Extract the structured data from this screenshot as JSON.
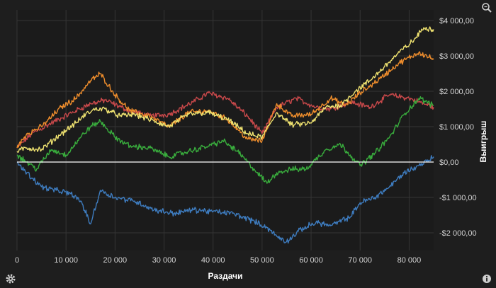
{
  "chart_data": {
    "type": "line",
    "xlabel": "Раздачи",
    "ylabel": "Выигрыш",
    "xlim": [
      0,
      85000
    ],
    "ylim": [
      -2500,
      4300
    ],
    "x_ticks": [
      {
        "value": 0,
        "label": "0"
      },
      {
        "value": 10000,
        "label": "10 000"
      },
      {
        "value": 20000,
        "label": "20 000"
      },
      {
        "value": 30000,
        "label": "30 000"
      },
      {
        "value": 40000,
        "label": "40 000"
      },
      {
        "value": 50000,
        "label": "50 000"
      },
      {
        "value": 60000,
        "label": "60 000"
      },
      {
        "value": 70000,
        "label": "70 000"
      },
      {
        "value": 80000,
        "label": "80 000"
      }
    ],
    "y_ticks": [
      {
        "value": 4000,
        "label": "$4 000,00"
      },
      {
        "value": 3000,
        "label": "$3 000,00"
      },
      {
        "value": 2000,
        "label": "$2 000,00"
      },
      {
        "value": 1000,
        "label": "$1 000,00"
      },
      {
        "value": 0,
        "label": "$0,00"
      },
      {
        "value": -1000,
        "label": "-$1 000,00"
      },
      {
        "value": -2000,
        "label": "-$2 000,00"
      }
    ],
    "grid": true,
    "zero_line": true,
    "series": [
      {
        "color": "#c8484a",
        "x": [
          0,
          3000,
          7000,
          12000,
          15000,
          18000,
          22000,
          27000,
          31000,
          36000,
          39000,
          43000,
          47000,
          50000,
          53000,
          57000,
          61000,
          64000,
          68000,
          72000,
          76000,
          80000,
          85000
        ],
        "y": [
          400,
          800,
          1100,
          1450,
          1650,
          1750,
          1500,
          1300,
          1350,
          1700,
          1950,
          1800,
          1300,
          800,
          1550,
          1800,
          1550,
          1500,
          1700,
          1550,
          1900,
          1800,
          1550
        ]
      },
      {
        "color": "#ee8d2c",
        "x": [
          0,
          2000,
          5000,
          9000,
          12000,
          15000,
          17000,
          20000,
          23000,
          27000,
          31000,
          35000,
          39000,
          43000,
          47000,
          50000,
          53000,
          56000,
          60000,
          64000,
          67000,
          70000,
          74000,
          78000,
          82000,
          85000
        ],
        "y": [
          400,
          800,
          1000,
          1550,
          1800,
          2300,
          2500,
          1900,
          1450,
          1300,
          1000,
          1400,
          1450,
          1200,
          650,
          600,
          1650,
          1300,
          1350,
          1800,
          1600,
          1950,
          2350,
          2800,
          3100,
          2900
        ]
      },
      {
        "color": "#efe270",
        "x": [
          0,
          2000,
          5000,
          9000,
          12000,
          14000,
          16000,
          18000,
          21000,
          24000,
          28000,
          31000,
          35000,
          39000,
          43000,
          47000,
          50000,
          53000,
          56000,
          60000,
          63000,
          66000,
          69000,
          72000,
          75000,
          78000,
          81000,
          83000,
          85000
        ],
        "y": [
          300,
          400,
          350,
          800,
          1100,
          1350,
          1500,
          1500,
          1300,
          1350,
          1150,
          1000,
          1350,
          1400,
          1200,
          800,
          700,
          1400,
          1050,
          1100,
          1550,
          1600,
          2000,
          2300,
          2700,
          3100,
          3450,
          3800,
          3750
        ]
      },
      {
        "color": "#39ad3d",
        "x": [
          0,
          2000,
          4000,
          7000,
          10000,
          13000,
          15000,
          17000,
          20000,
          23000,
          27000,
          31000,
          35000,
          39000,
          42000,
          45000,
          48000,
          51000,
          53000,
          56000,
          59000,
          63000,
          66000,
          68000,
          70000,
          73000,
          76000,
          79000,
          82000,
          85000
        ],
        "y": [
          200,
          0,
          -200,
          350,
          200,
          700,
          1000,
          1150,
          700,
          450,
          400,
          150,
          300,
          450,
          600,
          300,
          -150,
          -600,
          -300,
          -200,
          -200,
          350,
          500,
          200,
          -100,
          250,
          700,
          1350,
          1800,
          1600
        ]
      },
      {
        "color": "#3e7cbf",
        "x": [
          0,
          2000,
          5000,
          8000,
          11000,
          13000,
          15000,
          17000,
          20000,
          24000,
          28000,
          32000,
          36000,
          40000,
          44000,
          48000,
          51000,
          53000,
          55000,
          58000,
          61000,
          64000,
          68000,
          70000,
          73000,
          76000,
          79000,
          82000,
          85000
        ],
        "y": [
          0,
          -300,
          -700,
          -800,
          -900,
          -1100,
          -1750,
          -800,
          -1000,
          -1100,
          -1350,
          -1450,
          -1350,
          -1400,
          -1450,
          -1650,
          -1850,
          -2100,
          -2250,
          -1900,
          -1700,
          -1800,
          -1550,
          -1150,
          -1000,
          -700,
          -300,
          -100,
          150
        ]
      }
    ]
  },
  "icons": {
    "zoom": "zoom-icon",
    "settings": "gear-icon",
    "info": "info-icon"
  }
}
